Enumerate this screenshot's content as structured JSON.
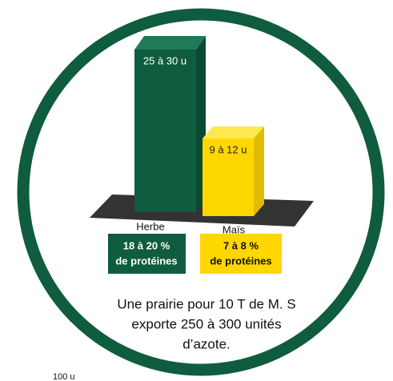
{
  "bars": [
    {
      "value_label": "25 à 30 u",
      "name": "Herbe",
      "protein": [
        "18 à 20 %",
        "de protéines"
      ]
    },
    {
      "value_label": "9 à 12 u",
      "name": "Maïs",
      "protein": [
        "7 à 8 %",
        "de protéines"
      ]
    }
  ],
  "caption": [
    "Une prairie pour 10 T de M. S",
    "exporte 250 à 300 unités",
    "d’azote."
  ],
  "axis_fragment": "100 u"
}
